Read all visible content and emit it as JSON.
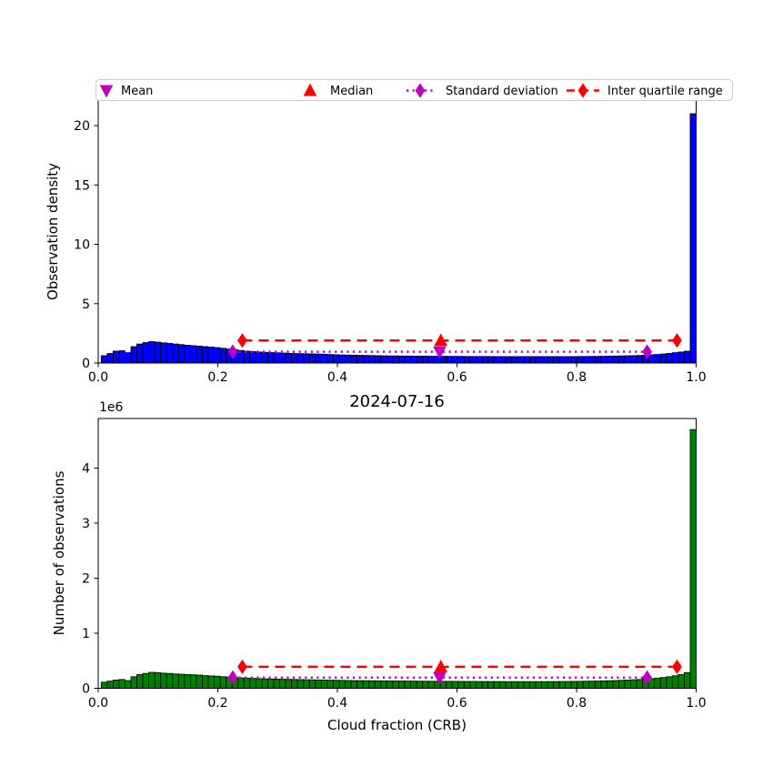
{
  "figure": {
    "title": "2024-07-16",
    "xlabel": "Cloud fraction (CRB)",
    "offset_text": "1e6",
    "x_tick_labels": [
      "0.0",
      "0.2",
      "0.4",
      "0.6",
      "0.8",
      "1.0"
    ]
  },
  "colors": {
    "density_bars": "#0000ff",
    "count_bars": "#008000",
    "bar_edge": "#000000",
    "mean_std": "#bf00bf",
    "median_iqr": "#ff0000",
    "legend_border": "#cccccc",
    "background": "#ffffff"
  },
  "legend": {
    "items": [
      {
        "label": "Mean",
        "marker": "triangle-down",
        "color": "#bf00bf"
      },
      {
        "label": "Median",
        "marker": "triangle-up",
        "color": "#ff0000"
      },
      {
        "label": "Standard deviation",
        "marker": "diamond-dotted-line",
        "color": "#bf00bf"
      },
      {
        "label": "Inter quartile range",
        "marker": "diamond-dashed-line",
        "color": "#ff0000"
      }
    ]
  },
  "chart_data": [
    {
      "type": "bar",
      "name": "observation-density-histogram",
      "ylabel": "Observation density",
      "bar_color": "#0000ff",
      "xlim": [
        0,
        1
      ],
      "ylim": [
        0,
        22.15
      ],
      "yticks": [
        0,
        5,
        10,
        15,
        20
      ],
      "ytick_labels": [
        "0",
        "5",
        "10",
        "15",
        "20"
      ],
      "bin_start": 0.005,
      "bin_width": 0.00995,
      "values": [
        0.62,
        0.8,
        1.0,
        1.03,
        0.87,
        1.38,
        1.6,
        1.72,
        1.8,
        1.76,
        1.7,
        1.65,
        1.6,
        1.55,
        1.5,
        1.46,
        1.42,
        1.38,
        1.34,
        1.3,
        1.24,
        1.18,
        1.12,
        1.06,
        1.0,
        0.96,
        0.93,
        0.9,
        0.88,
        0.86,
        0.84,
        0.82,
        0.8,
        0.79,
        0.78,
        0.77,
        0.76,
        0.74,
        0.72,
        0.7,
        0.68,
        0.67,
        0.66,
        0.65,
        0.64,
        0.63,
        0.62,
        0.61,
        0.6,
        0.6,
        0.59,
        0.59,
        0.58,
        0.58,
        0.58,
        0.57,
        0.57,
        0.57,
        0.56,
        0.56,
        0.56,
        0.55,
        0.55,
        0.55,
        0.55,
        0.55,
        0.54,
        0.54,
        0.54,
        0.54,
        0.54,
        0.54,
        0.54,
        0.54,
        0.54,
        0.54,
        0.54,
        0.54,
        0.54,
        0.54,
        0.55,
        0.55,
        0.56,
        0.56,
        0.57,
        0.58,
        0.59,
        0.6,
        0.61,
        0.62,
        0.64,
        0.66,
        0.69,
        0.72,
        0.76,
        0.81,
        0.87,
        0.93,
        1.0,
        21.0
      ],
      "stats": {
        "mean": 0.571,
        "median": 0.573,
        "std_range": [
          0.225,
          0.918
        ],
        "iqr_range": [
          0.241,
          0.968
        ],
        "std_line_y": 0.95,
        "iqr_line_y": 1.9
      }
    },
    {
      "type": "bar",
      "name": "observation-count-histogram",
      "title": "2024-07-16",
      "xlabel": "Cloud fraction (CRB)",
      "ylabel": "Number of observations",
      "y_offset_factor": "1e6",
      "bar_color": "#008000",
      "xlim": [
        0,
        1
      ],
      "ylim": [
        0,
        4900000
      ],
      "yticks": [
        0,
        1000000,
        2000000,
        3000000,
        4000000
      ],
      "ytick_labels": [
        "0",
        "1",
        "2",
        "3",
        "4"
      ],
      "bin_start": 0.005,
      "bin_width": 0.00995,
      "values": [
        110000,
        130000,
        150000,
        160000,
        140000,
        210000,
        250000,
        270000,
        290000,
        285000,
        275000,
        270000,
        260000,
        255000,
        250000,
        245000,
        240000,
        230000,
        225000,
        220000,
        210000,
        205000,
        195000,
        190000,
        185000,
        180000,
        175000,
        172000,
        170000,
        167000,
        165000,
        162000,
        160000,
        158000,
        156000,
        154000,
        152000,
        150000,
        148000,
        146000,
        144000,
        142000,
        140000,
        139000,
        138000,
        137000,
        136000,
        135000,
        134000,
        133000,
        132000,
        131000,
        130000,
        129000,
        128000,
        127000,
        127000,
        126000,
        126000,
        125000,
        125000,
        124000,
        124000,
        123000,
        123000,
        122000,
        122000,
        122000,
        121000,
        121000,
        121000,
        121000,
        121000,
        121000,
        121000,
        122000,
        122000,
        123000,
        124000,
        125000,
        126000,
        128000,
        130000,
        132000,
        135000,
        138000,
        141000,
        145000,
        150000,
        155000,
        160000,
        167000,
        175000,
        185000,
        196000,
        210000,
        228000,
        250000,
        285000,
        4700000
      ],
      "stats": {
        "mean": 0.571,
        "median": 0.573,
        "std_range": [
          0.225,
          0.918
        ],
        "iqr_range": [
          0.241,
          0.968
        ],
        "std_line_y": 195000,
        "iqr_line_y": 390000
      }
    }
  ]
}
